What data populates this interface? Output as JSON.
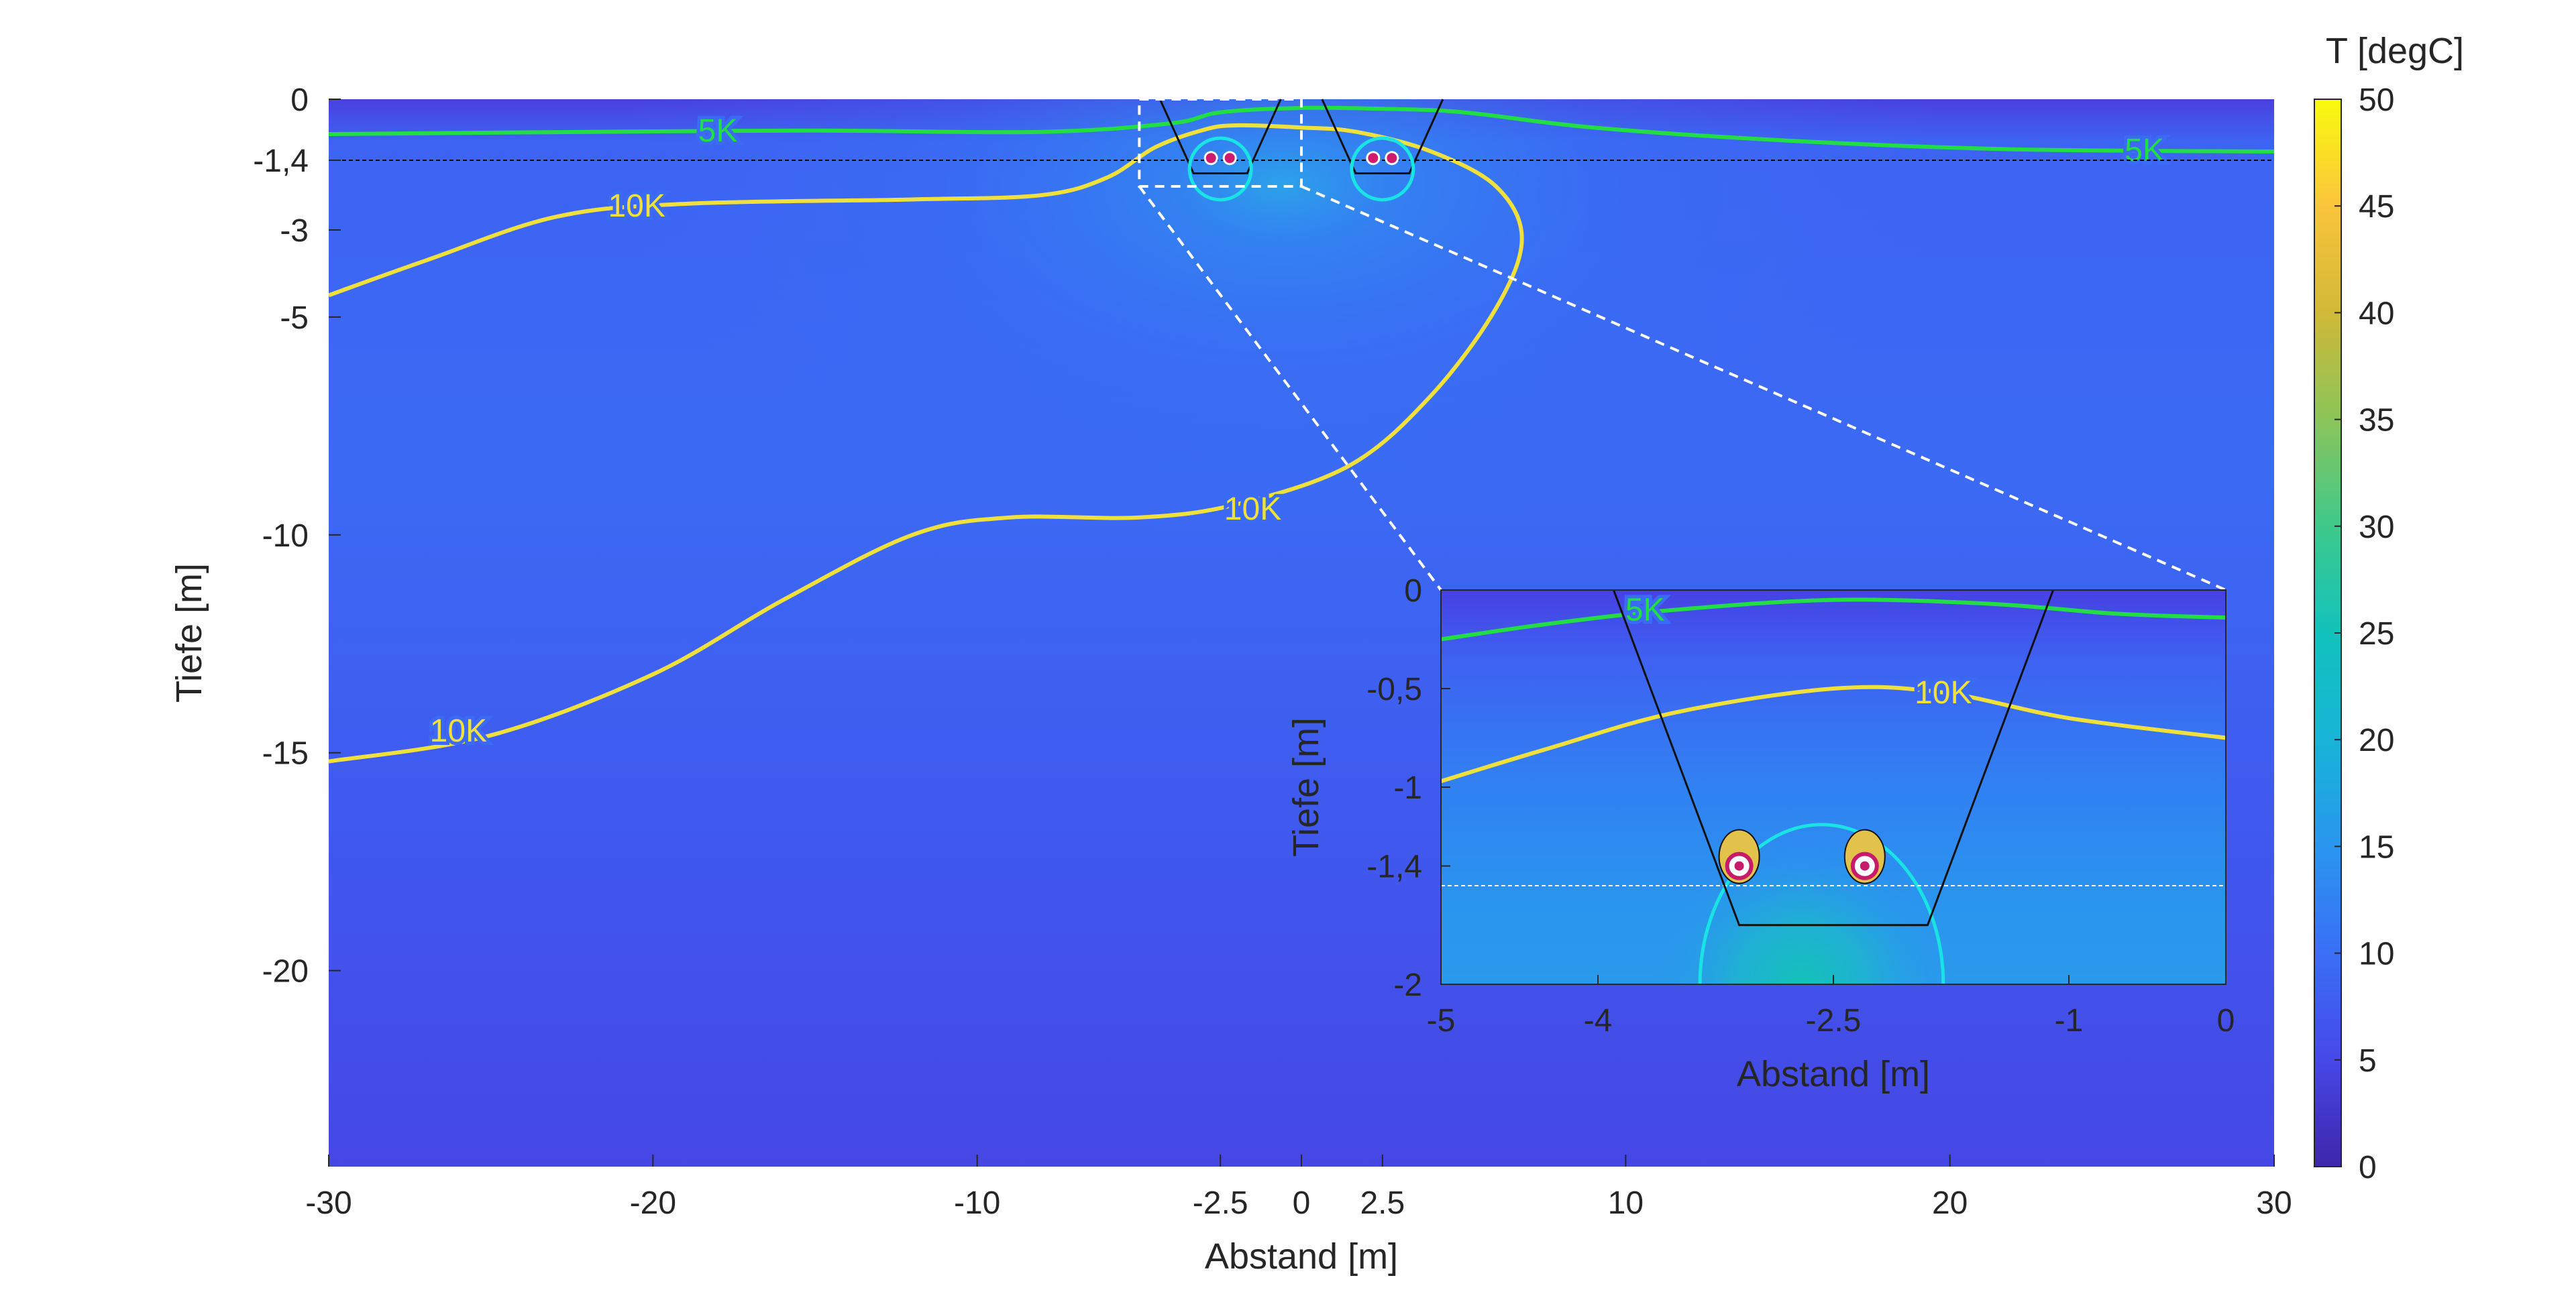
{
  "chart_data": [
    {
      "type": "heatmap",
      "title": "",
      "xlabel": "Abstand [m]",
      "ylabel": "Tiefe [m]",
      "xlim": [
        -30,
        30
      ],
      "ylim": [
        -24.5,
        0
      ],
      "xticks": [
        -30,
        -20,
        -10,
        -2.5,
        0,
        2.5,
        10,
        20,
        30
      ],
      "xtick_labels": [
        "-30",
        "-20",
        "-10",
        "-2.5",
        "0",
        "2.5",
        "10",
        "20",
        "30"
      ],
      "yticks": [
        0,
        -1.4,
        -3,
        -5,
        -10,
        -15,
        -20
      ],
      "ytick_labels": [
        "0",
        "-1,4",
        "-3",
        "-5",
        "-10",
        "-15",
        "-20"
      ],
      "reference_depth": -1.4,
      "colorbar": {
        "label": "T [degC]",
        "range": [
          0,
          50
        ],
        "ticks": [
          0,
          5,
          10,
          15,
          20,
          25,
          30,
          35,
          40,
          45,
          50
        ],
        "tick_labels": [
          "0",
          "5",
          "10",
          "15",
          "20",
          "25",
          "30",
          "35",
          "40",
          "45",
          "50"
        ]
      },
      "contours": [
        {
          "label": "5K",
          "color": "#22dd44",
          "points": [
            [
              -30,
              -0.8
            ],
            [
              -22,
              -0.75
            ],
            [
              -15,
              -0.72
            ],
            [
              -8,
              -0.75
            ],
            [
              -4,
              -0.55
            ],
            [
              -2.5,
              -0.3
            ],
            [
              0,
              -0.2
            ],
            [
              2.5,
              -0.22
            ],
            [
              5,
              -0.3
            ],
            [
              9,
              -0.65
            ],
            [
              15,
              -0.95
            ],
            [
              22,
              -1.15
            ],
            [
              30,
              -1.2
            ]
          ],
          "label_positions": [
            [
              -18,
              -0.72
            ],
            [
              26,
              -1.17
            ]
          ]
        },
        {
          "label": "10K",
          "color": "#f0e03c",
          "points": [
            [
              -30,
              -4.5
            ],
            [
              -27,
              -3.7
            ],
            [
              -23,
              -2.7
            ],
            [
              -19,
              -2.4
            ],
            [
              -12,
              -2.3
            ],
            [
              -8,
              -2.2
            ],
            [
              -6,
              -1.8
            ],
            [
              -4.5,
              -1.1
            ],
            [
              -3,
              -0.7
            ],
            [
              -2,
              -0.6
            ],
            [
              0,
              -0.65
            ],
            [
              1.7,
              -0.75
            ],
            [
              4,
              -1.2
            ],
            [
              6,
              -2
            ],
            [
              6.8,
              -3.2
            ],
            [
              6,
              -4.8
            ],
            [
              4,
              -6.8
            ],
            [
              1.5,
              -8.4
            ],
            [
              -2,
              -9.3
            ],
            [
              -5,
              -9.6
            ],
            [
              -9,
              -9.6
            ],
            [
              -12,
              -10
            ],
            [
              -16,
              -11.5
            ],
            [
              -20,
              -13.2
            ],
            [
              -25,
              -14.6
            ],
            [
              -30,
              -15.2
            ]
          ],
          "label_positions": [
            [
              -20.5,
              -2.45
            ],
            [
              -1.5,
              -9.4
            ],
            [
              -26,
              -14.5
            ]
          ]
        }
      ],
      "zoom_box": {
        "x": [
          -5,
          0
        ],
        "y": [
          -2,
          0
        ]
      }
    },
    {
      "type": "heatmap",
      "title": "",
      "xlabel": "Abstand [m]",
      "ylabel": "Tiefe [m]",
      "xlim": [
        -5,
        0
      ],
      "ylim": [
        -2,
        0
      ],
      "xticks": [
        -5,
        -4,
        -2.5,
        -1,
        0
      ],
      "xtick_labels": [
        "-5",
        "-4",
        "-2.5",
        "-1",
        "0"
      ],
      "yticks": [
        0,
        -0.5,
        -1,
        -1.4,
        -2
      ],
      "ytick_labels": [
        "0",
        "-0,5",
        "-1",
        "-1,4",
        "-2"
      ],
      "reference_depth": -1.5,
      "trench": [
        [
          -3.9,
          0
        ],
        [
          -3.1,
          -1.7
        ],
        [
          -1.9,
          -1.7
        ],
        [
          -1.1,
          0
        ]
      ],
      "pipes": [
        {
          "x": -3.1,
          "y": -1.4
        },
        {
          "x": -2.3,
          "y": -1.4
        }
      ],
      "contours": [
        {
          "label": "5K",
          "color": "#22dd44",
          "points": [
            [
              -5,
              -0.25
            ],
            [
              -4.3,
              -0.17
            ],
            [
              -3.5,
              -0.1
            ],
            [
              -2.5,
              -0.05
            ],
            [
              -1.5,
              -0.07
            ],
            [
              -0.7,
              -0.12
            ],
            [
              0,
              -0.14
            ]
          ],
          "label_positions": [
            [
              -3.7,
              -0.1
            ]
          ]
        },
        {
          "label": "10K",
          "color": "#f0e03c",
          "points": [
            [
              -5,
              -0.97
            ],
            [
              -4.3,
              -0.8
            ],
            [
              -3.5,
              -0.62
            ],
            [
              -2.5,
              -0.5
            ],
            [
              -1.8,
              -0.52
            ],
            [
              -1,
              -0.65
            ],
            [
              0,
              -0.75
            ]
          ],
          "label_positions": [
            [
              -1.8,
              -0.52
            ]
          ]
        }
      ]
    }
  ]
}
